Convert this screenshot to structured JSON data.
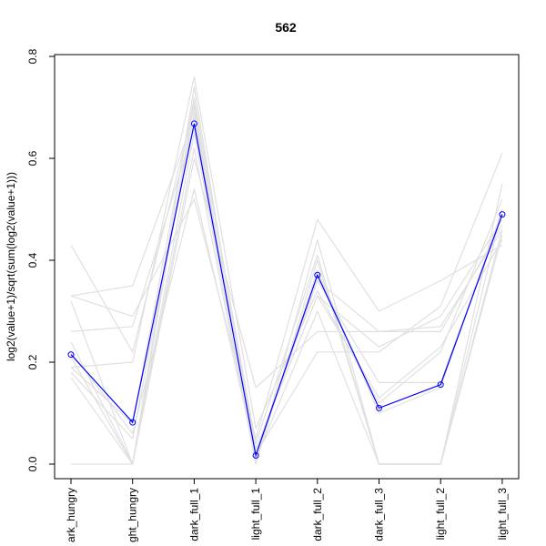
{
  "chart_data": {
    "type": "line",
    "title": "562",
    "xlabel": "",
    "ylabel": "log2(value+1)/sqrt(sum(log2(value+1)))",
    "categories": [
      "dark_hungry",
      "light_hungry",
      "dark_full_1",
      "light_full_1",
      "dark_full_2",
      "dark_full_3",
      "light_full_2",
      "light_full_3"
    ],
    "category_labels_visible": [
      "ark_hungry",
      "ght_hungry",
      "dark_full_1",
      "light_full_1",
      "dark_full_2",
      "dark_full_3",
      "light_full_2",
      "light_full_3"
    ],
    "yticks": [
      0.0,
      0.2,
      0.4,
      0.6,
      0.8
    ],
    "ytick_labels": [
      "0.0",
      "0.2",
      "0.4",
      "0.6",
      "0.8"
    ],
    "ylim": [
      -0.03,
      0.82
    ],
    "grid": false,
    "legend": "none",
    "highlight_color": "#0000ff",
    "background_series_color": "#e0e0e0",
    "highlight": {
      "values": [
        0.215,
        0.082,
        0.668,
        0.017,
        0.371,
        0.11,
        0.156,
        0.49
      ]
    },
    "background_series": [
      [
        0.43,
        0.22,
        0.7,
        0.01,
        0.38,
        0.1,
        0.15,
        0.5
      ],
      [
        0.33,
        0.35,
        0.68,
        0.02,
        0.36,
        0.26,
        0.26,
        0.47
      ],
      [
        0.26,
        0.27,
        0.66,
        0.03,
        0.33,
        0.23,
        0.29,
        0.48
      ],
      [
        0.32,
        0.0,
        0.65,
        0.0,
        0.4,
        0.0,
        0.0,
        0.46
      ],
      [
        0.19,
        0.2,
        0.76,
        0.07,
        0.34,
        0.12,
        0.22,
        0.52
      ],
      [
        0.17,
        0.0,
        0.62,
        0.0,
        0.44,
        0.0,
        0.0,
        0.55
      ],
      [
        0.0,
        0.0,
        0.6,
        0.15,
        0.26,
        0.26,
        0.27,
        0.46
      ],
      [
        0.33,
        0.29,
        0.52,
        0.05,
        0.48,
        0.3,
        0.36,
        0.43
      ],
      [
        0.22,
        0.06,
        0.54,
        0.02,
        0.22,
        0.22,
        0.31,
        0.61
      ],
      [
        0.19,
        0.08,
        0.72,
        0.03,
        0.33,
        0.13,
        0.23,
        0.44
      ],
      [
        0.24,
        0.0,
        0.71,
        0.04,
        0.41,
        0.0,
        0.0,
        0.45
      ],
      [
        0.21,
        0.0,
        0.74,
        0.01,
        0.3,
        0.0,
        0.0,
        0.5
      ],
      [
        0.18,
        0.05,
        0.69,
        0.02,
        0.36,
        0.16,
        0.16,
        0.49
      ]
    ]
  }
}
